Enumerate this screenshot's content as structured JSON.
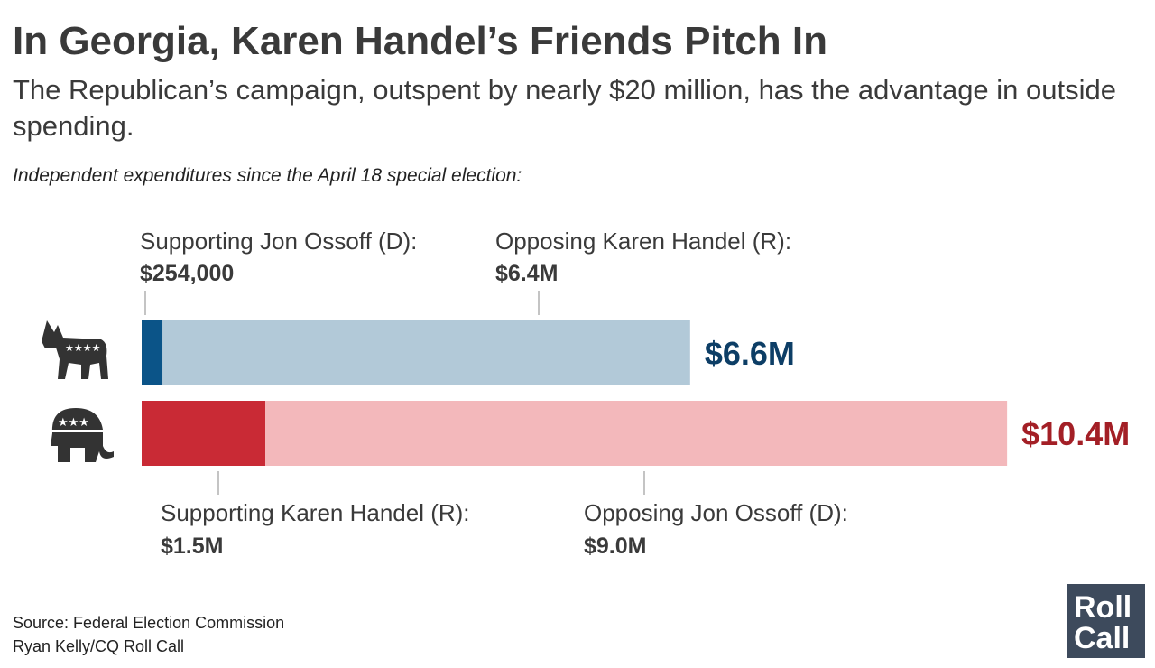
{
  "chart_data": {
    "type": "bar",
    "orientation": "horizontal",
    "stacked": true,
    "title": "In Georgia, Karen Handel’s Friends Pitch In",
    "subtitle": "The Republican’s campaign, outspent by nearly $20 million, has the advantage in outside spending.",
    "note": "Independent expenditures since the April 18 special election:",
    "xlim": [
      0,
      10400000
    ],
    "bars": [
      {
        "segments": [
          {
            "name": "Supporting Jon Ossoff (D):",
            "value": 254000,
            "value_label": "$254,000",
            "color": "#0b5488"
          },
          {
            "name": "Opposing Karen Handel (R):",
            "value": 6400000,
            "value_label": "$6.4M",
            "color": "#b2c9d8"
          }
        ],
        "total": 6600000,
        "total_label": "$6.6M",
        "total_color": "#0d3e66"
      },
      {
        "segments": [
          {
            "name": "Supporting Karen Handel (R):",
            "value": 1500000,
            "value_label": "$1.5M",
            "color": "#c92a35"
          },
          {
            "name": "Opposing Jon Ossoff (D):",
            "value": 9000000,
            "value_label": "$9.0M",
            "color": "#f3b8bb"
          }
        ],
        "total": 10400000,
        "total_label": "$10.4M",
        "total_color": "#a31f26"
      }
    ]
  },
  "footer": {
    "source": "Source: Federal Election Commission",
    "credit": "Ryan Kelly/CQ Roll Call",
    "logo": [
      "Roll",
      "Call"
    ]
  }
}
